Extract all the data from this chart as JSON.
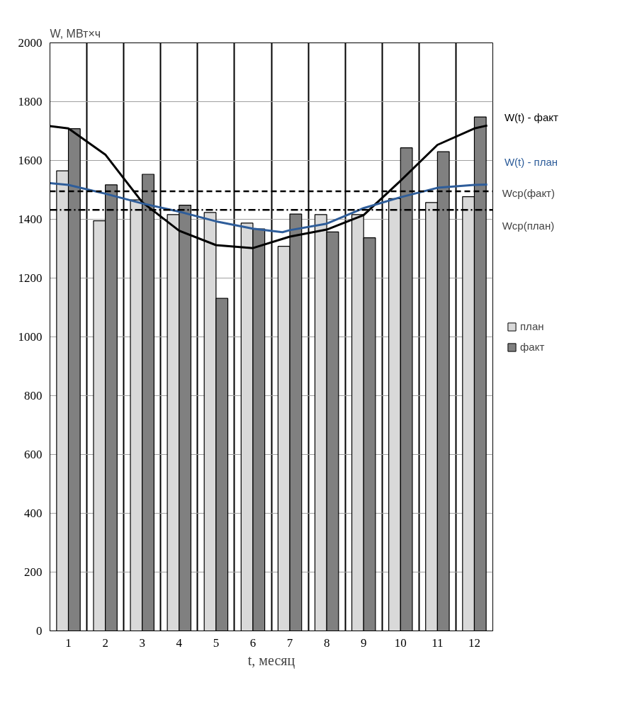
{
  "chart_data": {
    "type": "bar",
    "ylabel": "W, МВт×ч",
    "xlabel": "t, месяц",
    "x": [
      1,
      2,
      3,
      4,
      5,
      6,
      7,
      8,
      9,
      10,
      11,
      12
    ],
    "xlim": [
      0.5,
      12.5
    ],
    "xticks": [
      1,
      2,
      3,
      4,
      5,
      6,
      7,
      8,
      9,
      10,
      11,
      12
    ],
    "series": [
      {
        "name": "план",
        "color": "#d9d9d9",
        "values": [
          1565,
          1395,
          1466,
          1416,
          1423,
          1387,
          1308,
          1416,
          1416,
          1470,
          1457,
          1477
        ]
      },
      {
        "name": "факт",
        "color": "#808080",
        "values": [
          1708,
          1517,
          1553,
          1448,
          1131,
          1367,
          1418,
          1357,
          1337,
          1643,
          1630,
          1748
        ]
      },
      {
        "name": "W(t) - факт",
        "type": "line",
        "color": "#000000",
        "x": [
          0.5,
          1,
          2,
          3,
          4,
          5,
          6,
          7,
          8,
          9,
          10,
          11,
          12,
          12.35
        ],
        "values": [
          1717,
          1709,
          1620,
          1458,
          1361,
          1312,
          1302,
          1341,
          1365,
          1414,
          1531,
          1653,
          1709,
          1719
        ]
      },
      {
        "name": "W(t) - план",
        "type": "line",
        "color": "#2e5d9a",
        "x": [
          0.5,
          1,
          2,
          3,
          4,
          5,
          6,
          6.8,
          7,
          8,
          9,
          10,
          11,
          12,
          12.35
        ],
        "values": [
          1523,
          1517,
          1487,
          1454,
          1426,
          1393,
          1368,
          1356,
          1363,
          1385,
          1438,
          1475,
          1507,
          1517,
          1518
        ]
      }
    ],
    "ref_lines": [
      {
        "axis": "y",
        "value": 1495,
        "label": "Wср(факт)",
        "color": "#000000",
        "line_style": "dashed"
      },
      {
        "axis": "y",
        "value": 1432,
        "label": "Wср(план)",
        "color": "#000000",
        "line_style": "dashdot"
      }
    ],
    "ylim": [
      0,
      2000
    ],
    "yticks": [
      0,
      200,
      400,
      600,
      800,
      1000,
      1200,
      1400,
      1600,
      1800,
      2000
    ],
    "grid": true,
    "legend": "right"
  }
}
